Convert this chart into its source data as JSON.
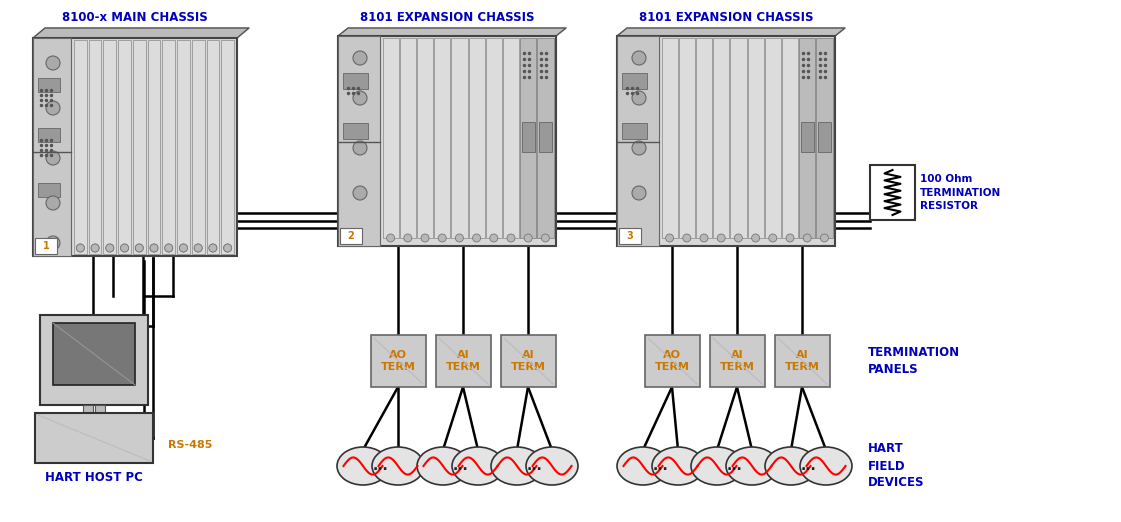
{
  "bg_color": "#ffffff",
  "chassis_face": "#d4d4d4",
  "chassis_light": "#e8e8e8",
  "chassis_dark": "#999999",
  "chassis_border": "#333333",
  "slot_color": "#e0e0e0",
  "slot_border": "#888888",
  "dark_slot": "#aaaaaa",
  "panel_color": "#cccccc",
  "wire_color": "#000000",
  "label_blue": "#0000bb",
  "label_orange": "#cc7700",
  "chassis1_label": "8100-x MAIN CHASSIS",
  "chassis2_label": "8101 EXPANSION CHASSIS",
  "chassis3_label": "8101 EXPANSION CHASSIS",
  "pc_label": "HART HOST PC",
  "rs485_label": "RS-485",
  "resistor_label": "100 Ohm\nTERMINATION\nRESISTOR",
  "term_label": "TERMINATION\nPANELS",
  "hart_label": "HART\nFIELD\nDEVICES",
  "panels_left": [
    "AO\nTERM",
    "AI\nTERM",
    "AI\nTERM"
  ],
  "panels_right": [
    "AO\nTERM",
    "AI\nTERM",
    "AI\nTERM"
  ]
}
